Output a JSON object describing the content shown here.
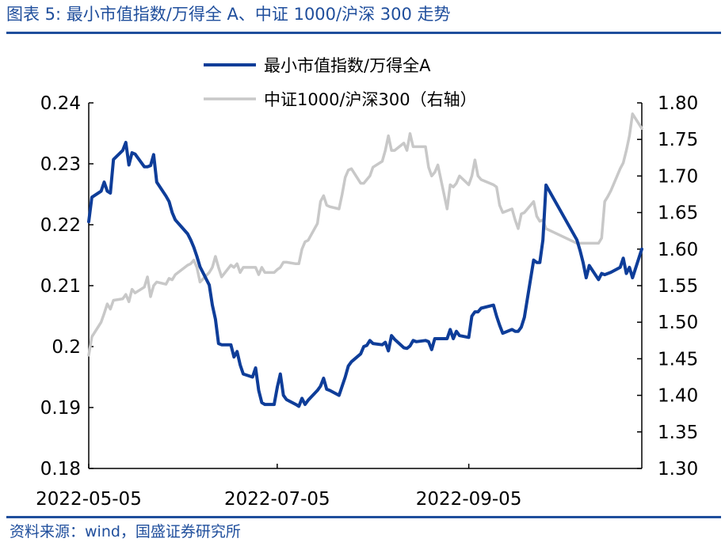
{
  "figure_title": "图表 5:  最小市值指数/万得全 A、中证 1000/沪深 300 走势",
  "source_note": "资料来源：wind，国盛证券研究所",
  "colors": {
    "title": "#1f4e9c",
    "left_series": "#0e3d99",
    "right_series": "#c8c8c8"
  },
  "chart_data": {
    "type": "line",
    "x_start": "2022-05-05",
    "x_end": "2022-10-31",
    "x_ticks": [
      "2022-05-05",
      "2022-07-05",
      "2022-09-05"
    ],
    "y_left": {
      "ylim": [
        0.18,
        0.24
      ],
      "ticks": [
        "0.18",
        "0.19",
        "0.2",
        "0.21",
        "0.22",
        "0.23",
        "0.24"
      ]
    },
    "y_right": {
      "ylim": [
        1.3,
        1.8
      ],
      "ticks": [
        "1.30",
        "1.35",
        "1.40",
        "1.45",
        "1.50",
        "1.55",
        "1.60",
        "1.65",
        "1.70",
        "1.75",
        "1.80"
      ]
    },
    "legend_position": "top-center",
    "grid": false,
    "series": [
      {
        "name": "最小市值指数/万得全A",
        "axis": "left",
        "points": [
          [
            "2022-05-05",
            0.2205
          ],
          [
            "2022-05-06",
            0.2245
          ],
          [
            "2022-05-09",
            0.2255
          ],
          [
            "2022-05-10",
            0.227
          ],
          [
            "2022-05-11",
            0.2255
          ],
          [
            "2022-05-12",
            0.2252
          ],
          [
            "2022-05-13",
            0.2307
          ],
          [
            "2022-05-16",
            0.2322
          ],
          [
            "2022-05-17",
            0.2335
          ],
          [
            "2022-05-18",
            0.2298
          ],
          [
            "2022-05-19",
            0.2318
          ],
          [
            "2022-05-20",
            0.2316
          ],
          [
            "2022-05-23",
            0.2295
          ],
          [
            "2022-05-24",
            0.2295
          ],
          [
            "2022-05-25",
            0.2297
          ],
          [
            "2022-05-26",
            0.2315
          ],
          [
            "2022-05-27",
            0.227
          ],
          [
            "2022-05-30",
            0.2247
          ],
          [
            "2022-05-31",
            0.2238
          ],
          [
            "2022-06-01",
            0.222
          ],
          [
            "2022-06-02",
            0.2208
          ],
          [
            "2022-06-06",
            0.2185
          ],
          [
            "2022-06-07",
            0.2175
          ],
          [
            "2022-06-08",
            0.2163
          ],
          [
            "2022-06-09",
            0.2148
          ],
          [
            "2022-06-10",
            0.2131
          ],
          [
            "2022-06-13",
            0.2101
          ],
          [
            "2022-06-14",
            0.2068
          ],
          [
            "2022-06-15",
            0.2045
          ],
          [
            "2022-06-16",
            0.2005
          ],
          [
            "2022-06-17",
            0.2003
          ],
          [
            "2022-06-20",
            0.2003
          ],
          [
            "2022-06-21",
            0.1983
          ],
          [
            "2022-06-22",
            0.1992
          ],
          [
            "2022-06-23",
            0.197
          ],
          [
            "2022-06-24",
            0.1955
          ],
          [
            "2022-06-27",
            0.195
          ],
          [
            "2022-06-28",
            0.1965
          ],
          [
            "2022-06-29",
            0.1928
          ],
          [
            "2022-06-30",
            0.1908
          ],
          [
            "2022-07-01",
            0.1905
          ],
          [
            "2022-07-04",
            0.1905
          ],
          [
            "2022-07-05",
            0.1933
          ],
          [
            "2022-07-06",
            0.1955
          ],
          [
            "2022-07-07",
            0.192
          ],
          [
            "2022-07-08",
            0.1913
          ],
          [
            "2022-07-11",
            0.1905
          ],
          [
            "2022-07-12",
            0.1902
          ],
          [
            "2022-07-13",
            0.1915
          ],
          [
            "2022-07-14",
            0.1905
          ],
          [
            "2022-07-15",
            0.1912
          ],
          [
            "2022-07-18",
            0.1928
          ],
          [
            "2022-07-19",
            0.1935
          ],
          [
            "2022-07-20",
            0.1948
          ],
          [
            "2022-07-21",
            0.193
          ],
          [
            "2022-07-22",
            0.1928
          ],
          [
            "2022-07-25",
            0.192
          ],
          [
            "2022-07-26",
            0.1935
          ],
          [
            "2022-07-27",
            0.195
          ],
          [
            "2022-07-28",
            0.1968
          ],
          [
            "2022-07-29",
            0.1975
          ],
          [
            "2022-08-01",
            0.1988
          ],
          [
            "2022-08-02",
            0.2
          ],
          [
            "2022-08-03",
            0.2002
          ],
          [
            "2022-08-04",
            0.201
          ],
          [
            "2022-08-05",
            0.2005
          ],
          [
            "2022-08-08",
            0.2003
          ],
          [
            "2022-08-09",
            0.2007
          ],
          [
            "2022-08-10",
            0.1993
          ],
          [
            "2022-08-11",
            0.2018
          ],
          [
            "2022-08-12",
            0.2012
          ],
          [
            "2022-08-15",
            0.1998
          ],
          [
            "2022-08-16",
            0.1997
          ],
          [
            "2022-08-17",
            0.2001
          ],
          [
            "2022-08-18",
            0.201
          ],
          [
            "2022-08-19",
            0.2008
          ],
          [
            "2022-08-22",
            0.201
          ],
          [
            "2022-08-23",
            0.2008
          ],
          [
            "2022-08-24",
            0.1995
          ],
          [
            "2022-08-25",
            0.2013
          ],
          [
            "2022-08-26",
            0.2013
          ],
          [
            "2022-08-29",
            0.2013
          ],
          [
            "2022-08-30",
            0.2028
          ],
          [
            "2022-08-31",
            0.2013
          ],
          [
            "2022-09-01",
            0.2025
          ],
          [
            "2022-09-02",
            0.2018
          ],
          [
            "2022-09-05",
            0.2015
          ],
          [
            "2022-09-06",
            0.205
          ],
          [
            "2022-09-07",
            0.2057
          ],
          [
            "2022-09-08",
            0.2057
          ],
          [
            "2022-09-09",
            0.2063
          ],
          [
            "2022-09-13",
            0.2068
          ],
          [
            "2022-09-14",
            0.205
          ],
          [
            "2022-09-15",
            0.2035
          ],
          [
            "2022-09-16",
            0.2022
          ],
          [
            "2022-09-19",
            0.2028
          ],
          [
            "2022-09-20",
            0.2025
          ],
          [
            "2022-09-21",
            0.2025
          ],
          [
            "2022-09-22",
            0.2032
          ],
          [
            "2022-09-23",
            0.2048
          ],
          [
            "2022-09-26",
            0.2142
          ],
          [
            "2022-09-27",
            0.2138
          ],
          [
            "2022-09-28",
            0.2138
          ],
          [
            "2022-09-29",
            0.2175
          ],
          [
            "2022-09-30",
            0.2265
          ],
          [
            "2022-10-10",
            0.2175
          ],
          [
            "2022-10-11",
            0.2158
          ],
          [
            "2022-10-12",
            0.2138
          ],
          [
            "2022-10-13",
            0.2113
          ],
          [
            "2022-10-14",
            0.2133
          ],
          [
            "2022-10-17",
            0.211
          ],
          [
            "2022-10-18",
            0.212
          ],
          [
            "2022-10-19",
            0.2118
          ],
          [
            "2022-10-20",
            0.212
          ],
          [
            "2022-10-21",
            0.2122
          ],
          [
            "2022-10-24",
            0.213
          ],
          [
            "2022-10-25",
            0.2145
          ],
          [
            "2022-10-26",
            0.212
          ],
          [
            "2022-10-27",
            0.213
          ],
          [
            "2022-10-28",
            0.2113
          ],
          [
            "2022-10-31",
            0.216
          ]
        ]
      },
      {
        "name": "中证1000/沪深300（右轴）",
        "axis": "right",
        "points": [
          [
            "2022-05-05",
            1.455
          ],
          [
            "2022-05-06",
            1.48
          ],
          [
            "2022-05-09",
            1.5
          ],
          [
            "2022-05-10",
            1.512
          ],
          [
            "2022-05-11",
            1.525
          ],
          [
            "2022-05-12",
            1.518
          ],
          [
            "2022-05-13",
            1.53
          ],
          [
            "2022-05-16",
            1.532
          ],
          [
            "2022-05-17",
            1.538
          ],
          [
            "2022-05-18",
            1.528
          ],
          [
            "2022-05-19",
            1.545
          ],
          [
            "2022-05-20",
            1.54
          ],
          [
            "2022-05-23",
            1.548
          ],
          [
            "2022-05-24",
            1.562
          ],
          [
            "2022-05-25",
            1.535
          ],
          [
            "2022-05-26",
            1.55
          ],
          [
            "2022-05-27",
            1.555
          ],
          [
            "2022-05-30",
            1.552
          ],
          [
            "2022-05-31",
            1.56
          ],
          [
            "2022-06-01",
            1.558
          ],
          [
            "2022-06-02",
            1.565
          ],
          [
            "2022-06-06",
            1.578
          ],
          [
            "2022-06-07",
            1.58
          ],
          [
            "2022-06-08",
            1.585
          ],
          [
            "2022-06-09",
            1.575
          ],
          [
            "2022-06-10",
            1.555
          ],
          [
            "2022-06-13",
            1.568
          ],
          [
            "2022-06-14",
            1.575
          ],
          [
            "2022-06-15",
            1.59
          ],
          [
            "2022-06-16",
            1.575
          ],
          [
            "2022-06-17",
            1.562
          ],
          [
            "2022-06-20",
            1.578
          ],
          [
            "2022-06-21",
            1.575
          ],
          [
            "2022-06-22",
            1.58
          ],
          [
            "2022-06-23",
            1.568
          ],
          [
            "2022-06-24",
            1.575
          ],
          [
            "2022-06-27",
            1.575
          ],
          [
            "2022-06-28",
            1.575
          ],
          [
            "2022-06-29",
            1.565
          ],
          [
            "2022-06-30",
            1.575
          ],
          [
            "2022-07-01",
            1.568
          ],
          [
            "2022-07-04",
            1.568
          ],
          [
            "2022-07-05",
            1.572
          ],
          [
            "2022-07-06",
            1.575
          ],
          [
            "2022-07-07",
            1.582
          ],
          [
            "2022-07-08",
            1.582
          ],
          [
            "2022-07-11",
            1.58
          ],
          [
            "2022-07-12",
            1.58
          ],
          [
            "2022-07-13",
            1.6
          ],
          [
            "2022-07-14",
            1.61
          ],
          [
            "2022-07-15",
            1.612
          ],
          [
            "2022-07-18",
            1.635
          ],
          [
            "2022-07-19",
            1.665
          ],
          [
            "2022-07-20",
            1.673
          ],
          [
            "2022-07-21",
            1.66
          ],
          [
            "2022-07-22",
            1.658
          ],
          [
            "2022-07-25",
            1.655
          ],
          [
            "2022-07-26",
            1.675
          ],
          [
            "2022-07-27",
            1.698
          ],
          [
            "2022-07-28",
            1.708
          ],
          [
            "2022-07-29",
            1.71
          ],
          [
            "2022-08-01",
            1.69
          ],
          [
            "2022-08-02",
            1.69
          ],
          [
            "2022-08-03",
            1.695
          ],
          [
            "2022-08-04",
            1.7
          ],
          [
            "2022-08-05",
            1.712
          ],
          [
            "2022-08-08",
            1.72
          ],
          [
            "2022-08-09",
            1.735
          ],
          [
            "2022-08-10",
            1.755
          ],
          [
            "2022-08-11",
            1.735
          ],
          [
            "2022-08-12",
            1.735
          ],
          [
            "2022-08-15",
            1.745
          ],
          [
            "2022-08-16",
            1.735
          ],
          [
            "2022-08-17",
            1.758
          ],
          [
            "2022-08-18",
            1.74
          ],
          [
            "2022-08-19",
            1.74
          ],
          [
            "2022-08-22",
            1.74
          ],
          [
            "2022-08-23",
            1.712
          ],
          [
            "2022-08-24",
            1.7
          ],
          [
            "2022-08-25",
            1.705
          ],
          [
            "2022-08-26",
            1.715
          ],
          [
            "2022-08-29",
            1.655
          ],
          [
            "2022-08-30",
            1.688
          ],
          [
            "2022-08-31",
            1.685
          ],
          [
            "2022-09-01",
            1.69
          ],
          [
            "2022-09-02",
            1.7
          ],
          [
            "2022-09-05",
            1.688
          ],
          [
            "2022-09-06",
            1.7
          ],
          [
            "2022-09-07",
            1.722
          ],
          [
            "2022-09-08",
            1.7
          ],
          [
            "2022-09-09",
            1.695
          ],
          [
            "2022-09-13",
            1.688
          ],
          [
            "2022-09-14",
            1.685
          ],
          [
            "2022-09-15",
            1.66
          ],
          [
            "2022-09-16",
            1.65
          ],
          [
            "2022-09-19",
            1.655
          ],
          [
            "2022-09-20",
            1.64
          ],
          [
            "2022-09-21",
            1.628
          ],
          [
            "2022-09-22",
            1.648
          ],
          [
            "2022-09-23",
            1.65
          ],
          [
            "2022-09-26",
            1.665
          ],
          [
            "2022-09-27",
            1.645
          ],
          [
            "2022-09-28",
            1.638
          ],
          [
            "2022-09-29",
            1.64
          ],
          [
            "2022-09-30",
            1.628
          ],
          [
            "2022-10-10",
            1.608
          ],
          [
            "2022-10-11",
            1.608
          ],
          [
            "2022-10-12",
            1.608
          ],
          [
            "2022-10-13",
            1.608
          ],
          [
            "2022-10-14",
            1.608
          ],
          [
            "2022-10-17",
            1.608
          ],
          [
            "2022-10-18",
            1.615
          ],
          [
            "2022-10-19",
            1.665
          ],
          [
            "2022-10-20",
            1.672
          ],
          [
            "2022-10-21",
            1.68
          ],
          [
            "2022-10-24",
            1.71
          ],
          [
            "2022-10-25",
            1.718
          ],
          [
            "2022-10-26",
            1.735
          ],
          [
            "2022-10-27",
            1.755
          ],
          [
            "2022-10-28",
            1.785
          ],
          [
            "2022-10-31",
            1.765
          ]
        ]
      }
    ]
  }
}
